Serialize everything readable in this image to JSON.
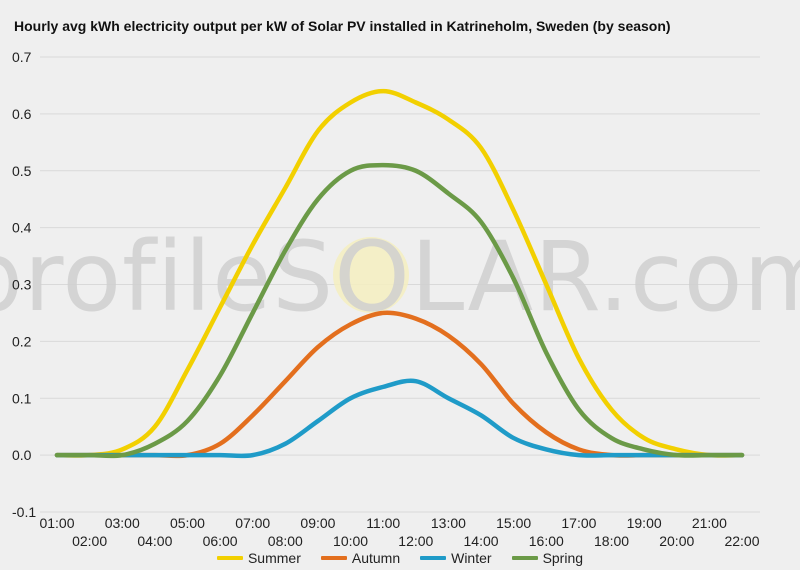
{
  "watermark": "profileSOLAR.com",
  "chart_data": {
    "type": "line",
    "title": "Hourly avg kWh electricity output per kW of Solar PV installed in Katrineholm, Sweden (by season)",
    "xlabel": "",
    "ylabel": "",
    "categories": [
      "01:00",
      "02:00",
      "03:00",
      "04:00",
      "05:00",
      "06:00",
      "07:00",
      "08:00",
      "09:00",
      "10:00",
      "11:00",
      "12:00",
      "13:00",
      "14:00",
      "15:00",
      "16:00",
      "17:00",
      "18:00",
      "19:00",
      "20:00",
      "21:00",
      "22:00"
    ],
    "y_ticks": [
      "-0.1",
      "0.0",
      "0.1",
      "0.2",
      "0.3",
      "0.4",
      "0.5",
      "0.6",
      "0.7"
    ],
    "ylim": [
      -0.1,
      0.7
    ],
    "grid": true,
    "legend_position": "bottom",
    "series": [
      {
        "name": "Summer",
        "color": "#f2d000",
        "values": [
          0.0,
          0.0,
          0.01,
          0.05,
          0.15,
          0.26,
          0.37,
          0.47,
          0.57,
          0.62,
          0.64,
          0.62,
          0.59,
          0.54,
          0.43,
          0.3,
          0.17,
          0.08,
          0.03,
          0.01,
          0.0,
          0.0
        ]
      },
      {
        "name": "Autumn",
        "color": "#e36f1e",
        "values": [
          0.0,
          0.0,
          0.0,
          0.0,
          0.0,
          0.02,
          0.07,
          0.13,
          0.19,
          0.23,
          0.25,
          0.24,
          0.21,
          0.16,
          0.09,
          0.04,
          0.01,
          0.0,
          0.0,
          0.0,
          0.0,
          0.0
        ]
      },
      {
        "name": "Winter",
        "color": "#1f9bc8",
        "values": [
          0.0,
          0.0,
          0.0,
          0.0,
          0.0,
          0.0,
          0.0,
          0.02,
          0.06,
          0.1,
          0.12,
          0.13,
          0.1,
          0.07,
          0.03,
          0.01,
          0.0,
          0.0,
          0.0,
          0.0,
          0.0,
          0.0
        ]
      },
      {
        "name": "Spring",
        "color": "#6b9a47",
        "values": [
          0.0,
          0.0,
          0.0,
          0.02,
          0.06,
          0.14,
          0.25,
          0.36,
          0.45,
          0.5,
          0.51,
          0.5,
          0.46,
          0.41,
          0.31,
          0.18,
          0.08,
          0.03,
          0.01,
          0.0,
          0.0,
          0.0
        ]
      }
    ]
  }
}
